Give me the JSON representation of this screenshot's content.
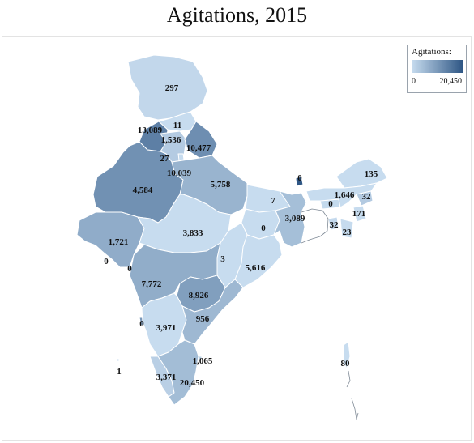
{
  "title": "Agitations, 2015",
  "legend": {
    "title": "Agitations:",
    "min_label": "0",
    "max_label": "20,450",
    "min_color": "#c7dcef",
    "max_color": "#2f5785"
  },
  "color_scale": {
    "min": 0,
    "max": 20450,
    "low": "#c7dcef",
    "high": "#2f5785"
  },
  "regions": [
    {
      "value": 297
    },
    {
      "value": 13089
    },
    {
      "value": 11
    },
    {
      "value": 1536
    },
    {
      "value": 10477
    },
    {
      "value": 27
    },
    {
      "value": 10039
    },
    {
      "value": 4584
    },
    {
      "value": 5758
    },
    {
      "value": 1721
    },
    {
      "value": 0
    },
    {
      "value": 3833
    },
    {
      "value": 0
    },
    {
      "value": 7
    },
    {
      "value": 3089
    },
    {
      "value": 0
    },
    {
      "value": 3
    },
    {
      "value": 5616
    },
    {
      "value": 7772
    },
    {
      "value": 8926
    },
    {
      "value": 0
    },
    {
      "value": 3971
    },
    {
      "value": 956
    },
    {
      "value": 1065
    },
    {
      "value": 3371
    },
    {
      "value": 20450
    },
    {
      "value": 0
    },
    {
      "value": 135
    },
    {
      "value": 0
    },
    {
      "value": 1646
    },
    {
      "value": 32
    },
    {
      "value": 171
    },
    {
      "value": 32
    },
    {
      "value": 23
    },
    {
      "value": 1
    },
    {
      "value": 80
    }
  ],
  "labels": [
    {
      "text": "297"
    },
    {
      "text": "13,089"
    },
    {
      "text": "11"
    },
    {
      "text": "1,536"
    },
    {
      "text": "10,477"
    },
    {
      "text": "27"
    },
    {
      "text": "10,039"
    },
    {
      "text": "4,584"
    },
    {
      "text": "5,758"
    },
    {
      "text": "1,721"
    },
    {
      "text": "0"
    },
    {
      "text": "3,833"
    },
    {
      "text": "0"
    },
    {
      "text": "7"
    },
    {
      "text": "3,089"
    },
    {
      "text": "0"
    },
    {
      "text": "3"
    },
    {
      "text": "5,616"
    },
    {
      "text": "7,772"
    },
    {
      "text": "8,926"
    },
    {
      "text": "0"
    },
    {
      "text": "3,971"
    },
    {
      "text": "956"
    },
    {
      "text": "1,065"
    },
    {
      "text": "3,371"
    },
    {
      "text": "20,450"
    },
    {
      "text": "0"
    },
    {
      "text": "135"
    },
    {
      "text": "0"
    },
    {
      "text": "1,646"
    },
    {
      "text": "32"
    },
    {
      "text": "171"
    },
    {
      "text": "32"
    },
    {
      "text": "23"
    },
    {
      "text": "1"
    },
    {
      "text": "80"
    }
  ]
}
